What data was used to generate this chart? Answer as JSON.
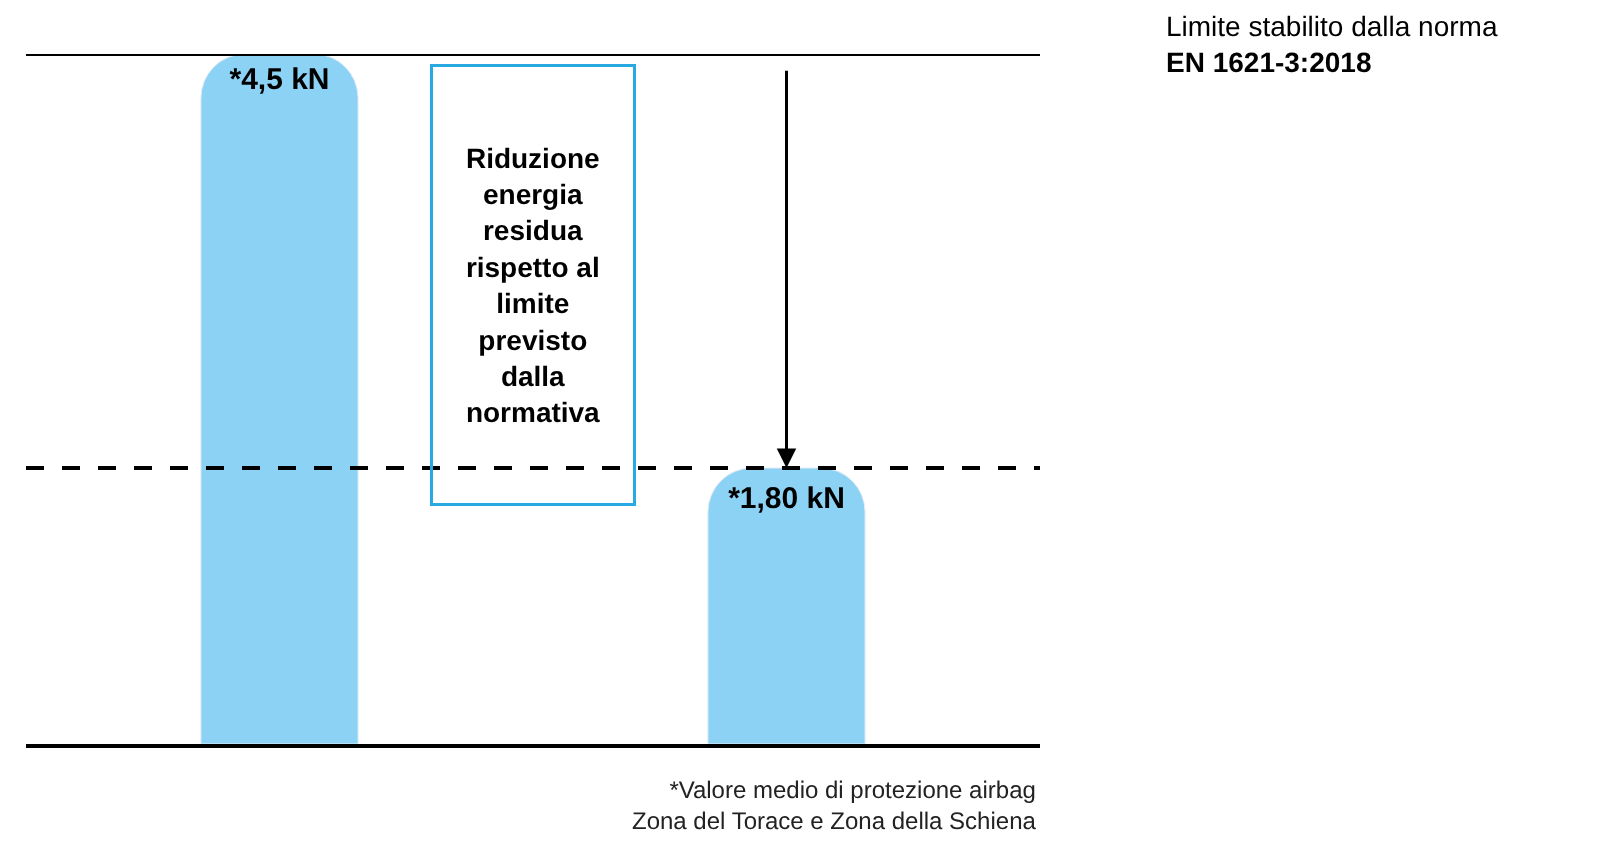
{
  "chart_data": {
    "type": "bar",
    "categories": [
      null,
      null
    ],
    "values": [
      4.5,
      1.8
    ],
    "color": "#8bd2f5",
    "value_labels": [
      "*4,5 kN",
      "*1,80 kN"
    ],
    "ref_lines": [
      {
        "axis": "y",
        "value": 4.5,
        "color": "#000000",
        "line_style": "solid"
      },
      {
        "axis": "y",
        "value": 1.8,
        "color": "#000000",
        "line_style": "dashed"
      }
    ],
    "annotations": [
      "Riduzione\nenergia\nresidua\nrispetto al\nlimite\nprevisto\ndalla\nnormativa",
      "*Valore medio di protezione airbag\nZona del Torace e Zona della Schiena",
      "Limite stabilito dalla norma\nEN 1621-3:2018"
    ],
    "tick_labels": false,
    "legend": false
  }
}
